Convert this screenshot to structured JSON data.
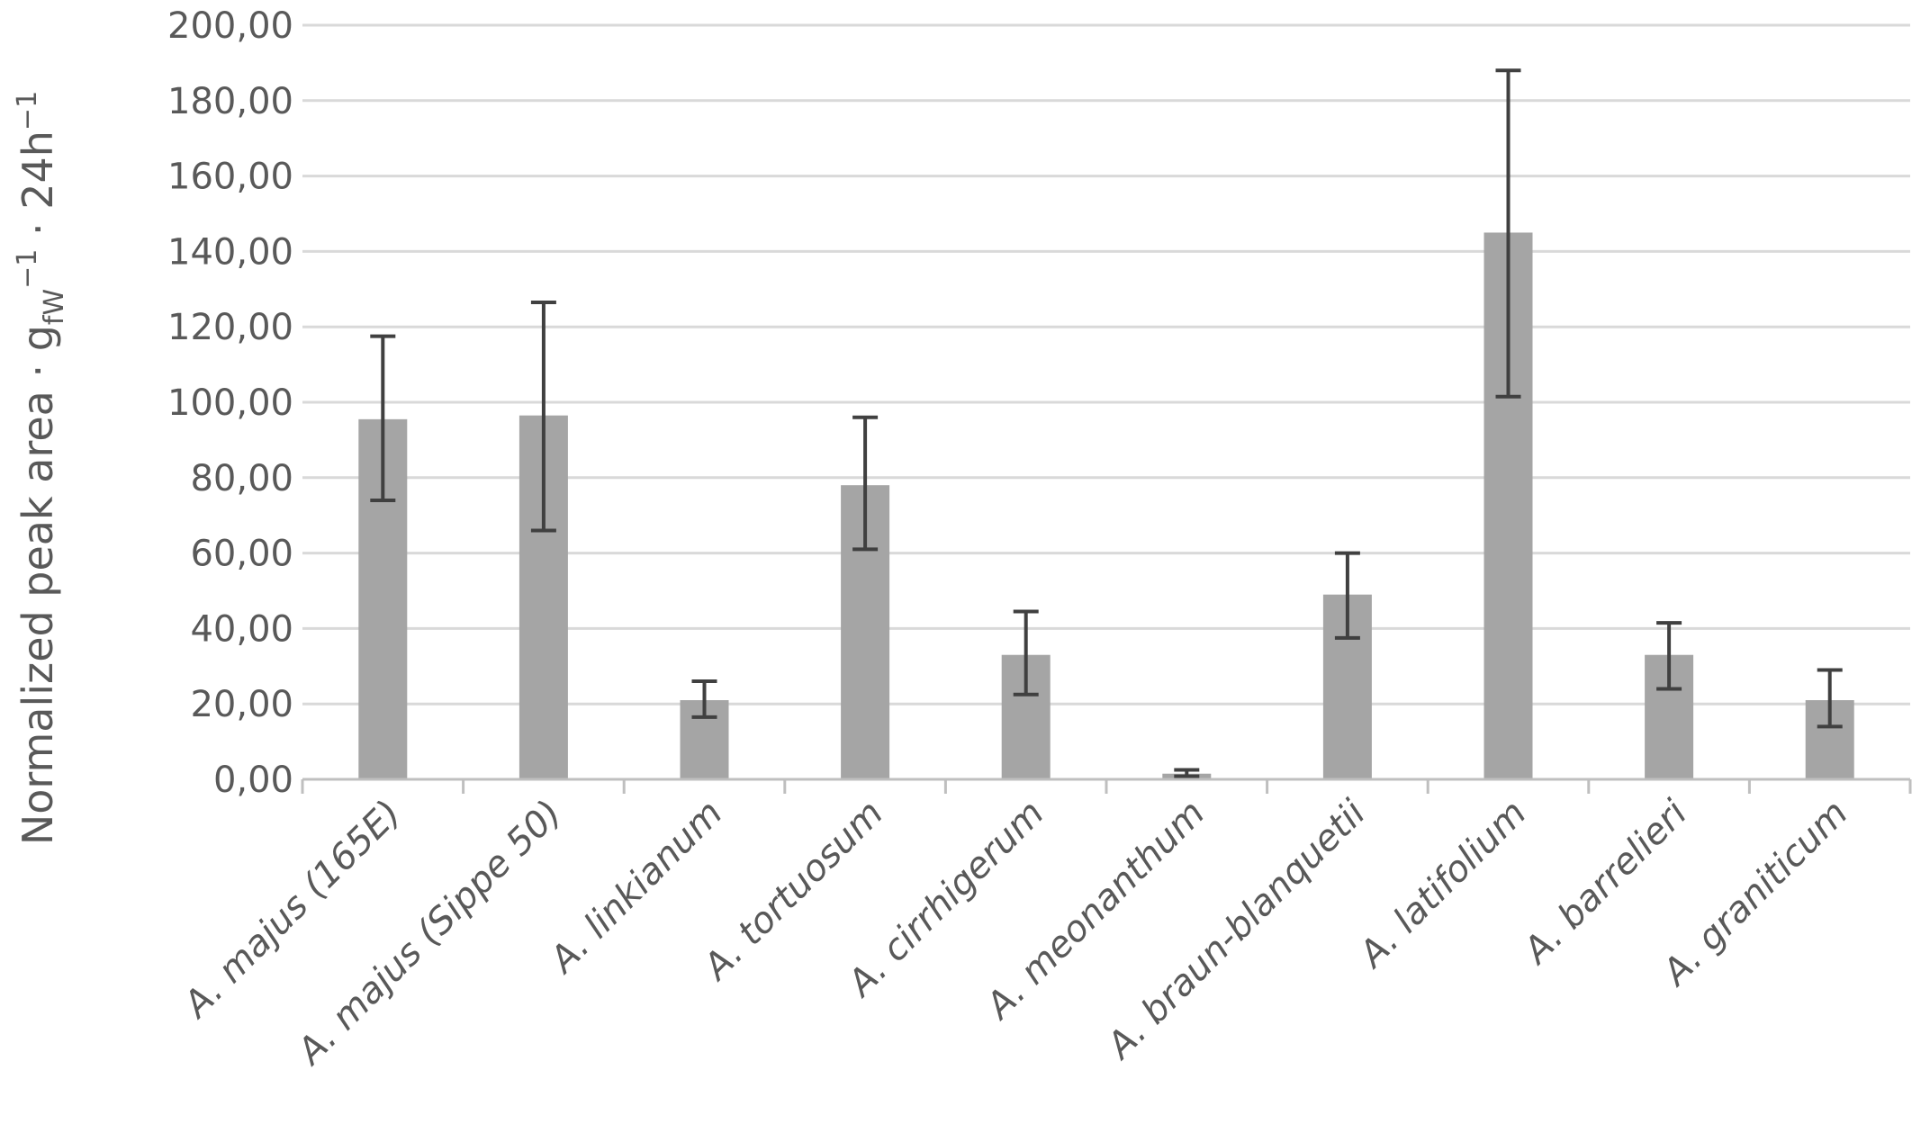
{
  "chart_data": {
    "type": "bar",
    "ylabel": {
      "main": "Normalized peak area · g",
      "subscript": "fW",
      "exp1": "−1",
      "mid": " · 24h",
      "exp2": "−1"
    },
    "xlabel": "",
    "ylim": [
      0,
      200
    ],
    "yticks": [
      0,
      20,
      40,
      60,
      80,
      100,
      120,
      140,
      160,
      180,
      200
    ],
    "ytick_labels": [
      "0,00",
      "20,00",
      "40,00",
      "60,00",
      "80,00",
      "100,00",
      "120,00",
      "140,00",
      "160,00",
      "180,00",
      "200,00"
    ],
    "grid": true,
    "categories": [
      "A. majus (165E)",
      "A. majus (Sippe 50)",
      "A. linkianum",
      "A. tortuosum",
      "A. cirrhigerum",
      "A. meonanthum",
      "A. braun-blanquetii",
      "A. latifolium",
      "A. barrelieri",
      "A. graniticum"
    ],
    "values": [
      95.5,
      96.5,
      21,
      78,
      33,
      1.5,
      49,
      145,
      33,
      21
    ],
    "error_low": [
      74,
      66,
      16.5,
      61,
      22.5,
      0.8,
      37.5,
      101.5,
      24,
      14
    ],
    "error_high": [
      117.5,
      126.5,
      26,
      96,
      44.5,
      2.5,
      60,
      188,
      41.5,
      29
    ],
    "colors": {
      "bar": "#a5a5a5",
      "error": "#404040",
      "grid": "#d9d9d9",
      "axis": "#bfbfbf",
      "text": "#595959"
    }
  }
}
